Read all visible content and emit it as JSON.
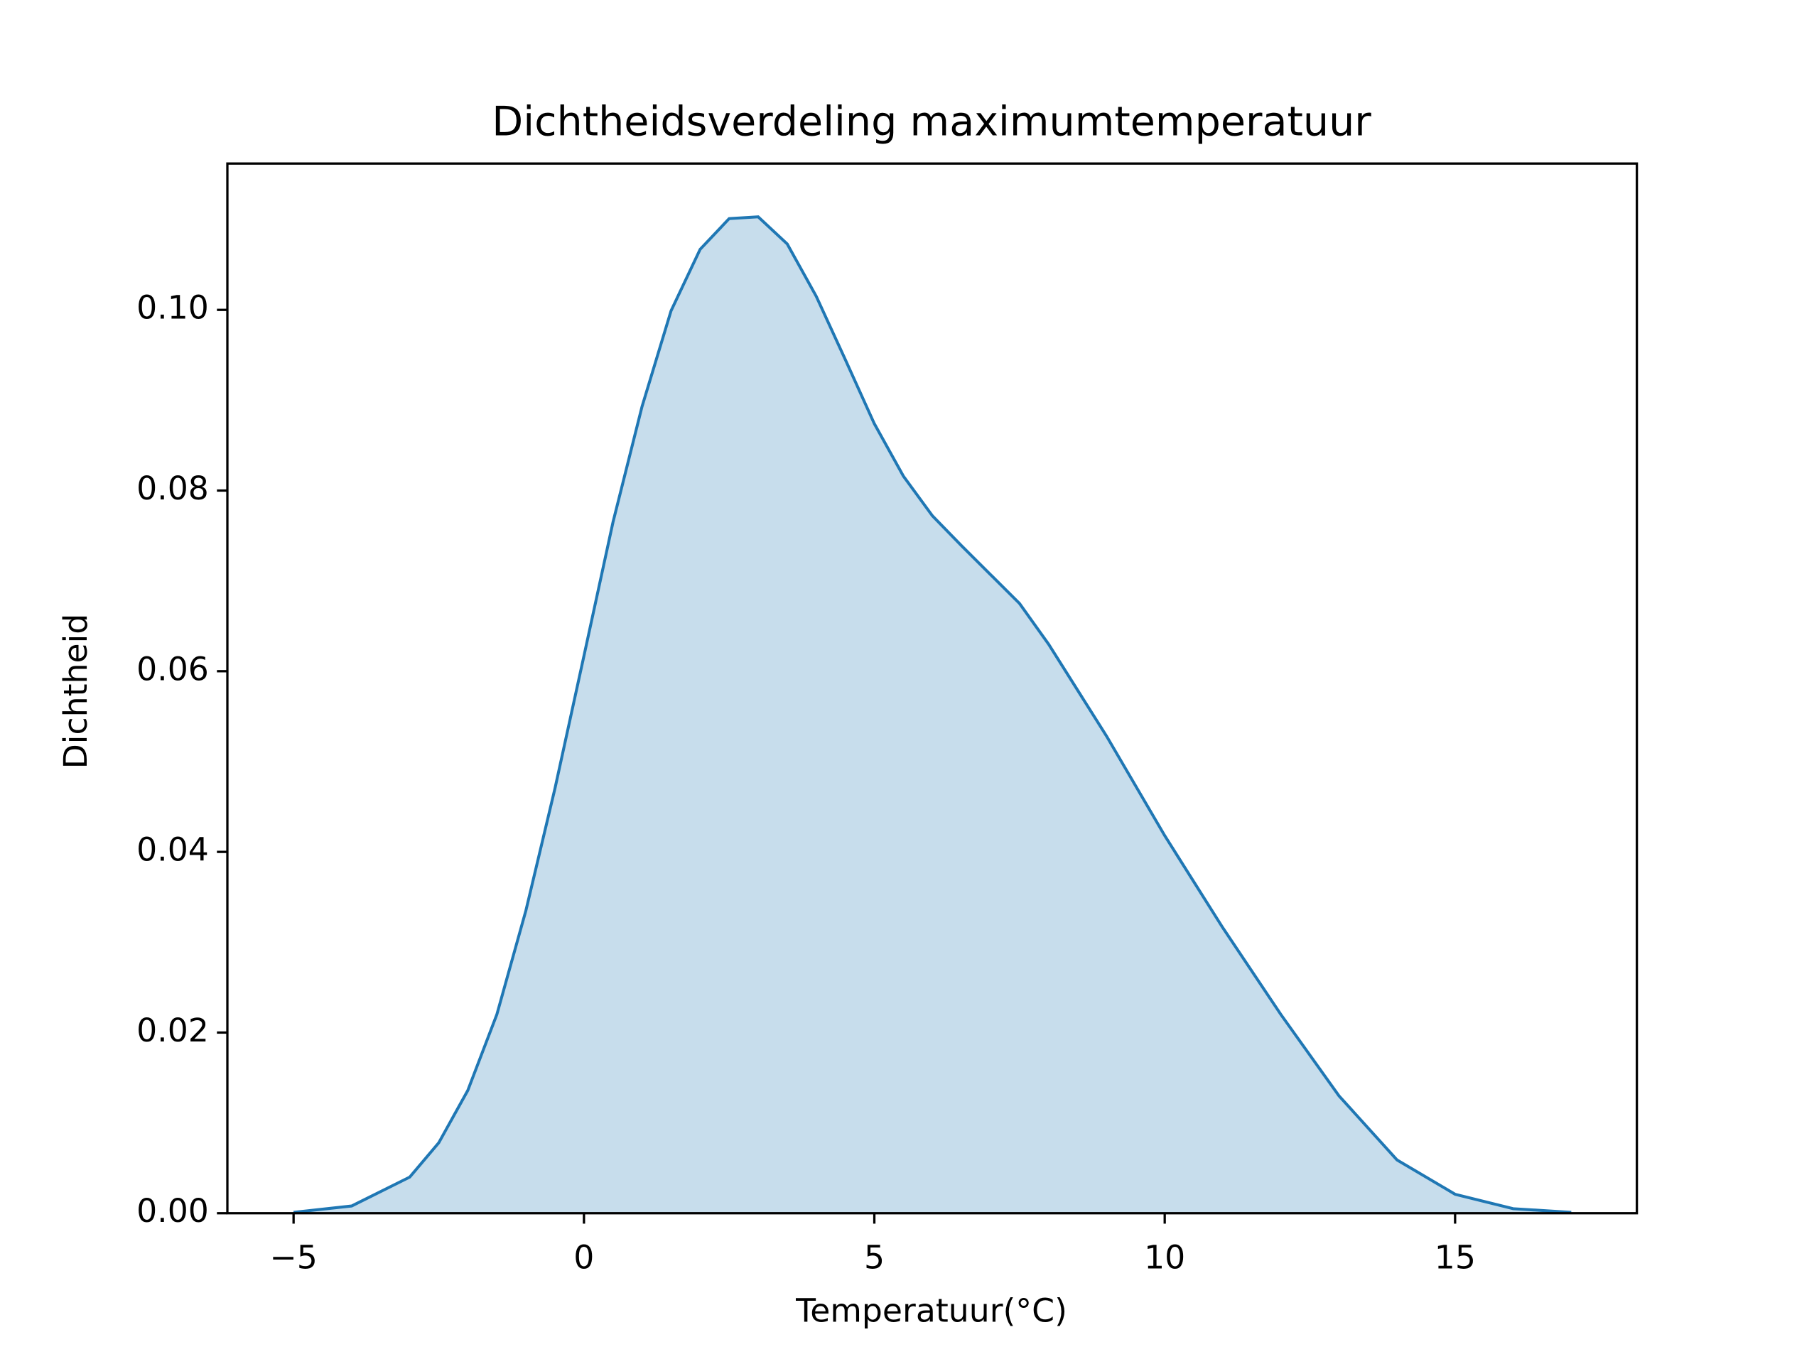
{
  "chart_data": {
    "type": "area",
    "title": "Dichtheidsverdeling maximumtemperatuur",
    "xlabel": "Temperatuur(°C)",
    "ylabel": "Dichtheid",
    "color": "#1f77b4",
    "fill_opacity": 0.25,
    "x": [
      -5,
      -4,
      -3,
      -2.5,
      -2,
      -1.5,
      -1,
      -0.5,
      0,
      0.5,
      1,
      1.5,
      2,
      2.5,
      3,
      3.5,
      4,
      4.5,
      5,
      5.5,
      6,
      6.5,
      7,
      7.5,
      8,
      9,
      10,
      11,
      12,
      13,
      14,
      15,
      16,
      17
    ],
    "values": [
      0.0001,
      0.0008,
      0.004,
      0.0078,
      0.0136,
      0.022,
      0.0335,
      0.047,
      0.0617,
      0.0765,
      0.0893,
      0.0999,
      0.1067,
      0.1101,
      0.1103,
      0.1073,
      0.1015,
      0.0945,
      0.0874,
      0.0816,
      0.0772,
      0.0739,
      0.0707,
      0.0675,
      0.063,
      0.0528,
      0.0418,
      0.0316,
      0.022,
      0.013,
      0.0059,
      0.0021,
      0.0005,
      0.0001
    ],
    "xlim": [
      -6.14,
      18.13
    ],
    "ylim": [
      0,
      0.1162
    ],
    "xticks": [
      {
        "value": -5,
        "label": "−5"
      },
      0,
      5,
      10,
      15
    ],
    "yticks": [
      {
        "value": 0,
        "label": "0.00"
      },
      {
        "value": 0.02,
        "label": "0.02"
      },
      {
        "value": 0.04,
        "label": "0.04"
      },
      {
        "value": 0.06,
        "label": "0.06"
      },
      {
        "value": 0.08,
        "label": "0.08"
      },
      {
        "value": 0.1,
        "label": "0.10"
      }
    ]
  }
}
